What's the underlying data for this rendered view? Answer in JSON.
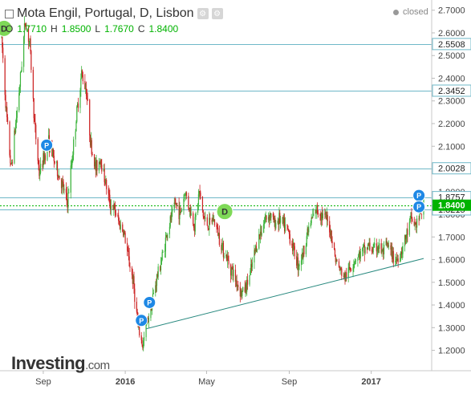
{
  "header": {
    "title": "Mota Engil, Portugal, D, Lisbon",
    "status": "closed",
    "ohlc": [
      {
        "key": "O",
        "value": "1.7710"
      },
      {
        "key": "H",
        "value": "1.8500"
      },
      {
        "key": "L",
        "value": "1.7670"
      },
      {
        "key": "C",
        "value": "1.8400"
      }
    ]
  },
  "logo": {
    "brand": "Investing",
    "domain": ".com"
  },
  "colors": {
    "up": "#3bb33b",
    "down": "#cc2222",
    "hline": "#6fb8c8",
    "trend": "#2a8a80",
    "last_price": "#00b300",
    "marker_p": "#1e88e5",
    "marker_d": "#7ed957"
  },
  "chart_data": {
    "type": "candlestick",
    "title": "Mota Engil, Portugal, D, Lisbon",
    "ylim": [
      1.11,
      2.745
    ],
    "y_ticks": [
      1.2,
      1.3,
      1.4,
      1.5,
      1.6,
      1.7,
      1.8,
      1.9,
      2.0,
      2.1,
      2.2,
      2.3,
      2.4,
      2.5,
      2.6,
      2.7
    ],
    "y_tick_labels": [
      "1.2000",
      "1.3000",
      "1.4000",
      "1.5000",
      "1.6000",
      "1.7000",
      "1.8000",
      "1.9000",
      "2.0000",
      "2.1000",
      "2.2000",
      "2.3000",
      "2.4000",
      "2.5000",
      "2.6000",
      "2.7000"
    ],
    "x_labels": [
      {
        "label": "Sep",
        "date": "2015-09-01"
      },
      {
        "label": "2016",
        "date": "2016-01-01",
        "bold": true
      },
      {
        "label": "May",
        "date": "2016-05-01"
      },
      {
        "label": "Sep",
        "date": "2016-09-01"
      },
      {
        "label": "2017",
        "date": "2017-01-01",
        "bold": true
      }
    ],
    "x_range": [
      "2015-07-01",
      "2017-03-20"
    ],
    "grid": false,
    "horizontal_levels": [
      {
        "value": 2.5508,
        "label": "2.5508"
      },
      {
        "value": 2.3452,
        "label": "2.3452"
      },
      {
        "value": 2.0028,
        "label": "2.0028"
      },
      {
        "value": 1.8757,
        "label": "1.8757"
      },
      {
        "value": 1.8215,
        "label": "1.8215"
      }
    ],
    "last_price": {
      "value": 1.84,
      "label": "1.8400"
    },
    "trendline": {
      "from": {
        "date": "2016-02-01",
        "value": 1.295
      },
      "to": {
        "date": "2017-03-20",
        "value": 1.605
      }
    },
    "price_path": [
      [
        "2015-07-01",
        2.58
      ],
      [
        "2015-07-08",
        2.25
      ],
      [
        "2015-07-15",
        2.0
      ],
      [
        "2015-07-22",
        2.2
      ],
      [
        "2015-07-29",
        2.4
      ],
      [
        "2015-08-05",
        2.65
      ],
      [
        "2015-08-12",
        2.55
      ],
      [
        "2015-08-19",
        2.2
      ],
      [
        "2015-08-26",
        1.98
      ],
      [
        "2015-09-02",
        2.05
      ],
      [
        "2015-09-09",
        2.12
      ],
      [
        "2015-09-16",
        2.05
      ],
      [
        "2015-09-23",
        1.98
      ],
      [
        "2015-09-30",
        1.92
      ],
      [
        "2015-10-07",
        1.85
      ],
      [
        "2015-10-14",
        2.05
      ],
      [
        "2015-10-21",
        2.25
      ],
      [
        "2015-10-28",
        2.42
      ],
      [
        "2015-11-04",
        2.35
      ],
      [
        "2015-11-11",
        2.1
      ],
      [
        "2015-11-18",
        2.0
      ],
      [
        "2015-11-25",
        2.05
      ],
      [
        "2015-12-02",
        1.95
      ],
      [
        "2015-12-09",
        1.85
      ],
      [
        "2015-12-16",
        1.82
      ],
      [
        "2015-12-23",
        1.76
      ],
      [
        "2015-12-30",
        1.72
      ],
      [
        "2016-01-06",
        1.6
      ],
      [
        "2016-01-13",
        1.5
      ],
      [
        "2016-01-20",
        1.3
      ],
      [
        "2016-01-27",
        1.22
      ],
      [
        "2016-02-03",
        1.33
      ],
      [
        "2016-02-10",
        1.42
      ],
      [
        "2016-02-17",
        1.52
      ],
      [
        "2016-02-24",
        1.6
      ],
      [
        "2016-03-02",
        1.7
      ],
      [
        "2016-03-09",
        1.78
      ],
      [
        "2016-03-16",
        1.85
      ],
      [
        "2016-03-23",
        1.8
      ],
      [
        "2016-03-30",
        1.9
      ],
      [
        "2016-04-06",
        1.82
      ],
      [
        "2016-04-13",
        1.75
      ],
      [
        "2016-04-20",
        1.9
      ],
      [
        "2016-04-27",
        1.78
      ],
      [
        "2016-05-04",
        1.75
      ],
      [
        "2016-05-11",
        1.78
      ],
      [
        "2016-05-18",
        1.72
      ],
      [
        "2016-05-25",
        1.65
      ],
      [
        "2016-06-01",
        1.6
      ],
      [
        "2016-06-08",
        1.55
      ],
      [
        "2016-06-15",
        1.5
      ],
      [
        "2016-06-22",
        1.45
      ],
      [
        "2016-06-29",
        1.48
      ],
      [
        "2016-07-06",
        1.55
      ],
      [
        "2016-07-13",
        1.65
      ],
      [
        "2016-07-20",
        1.72
      ],
      [
        "2016-07-27",
        1.78
      ],
      [
        "2016-08-03",
        1.8
      ],
      [
        "2016-08-10",
        1.76
      ],
      [
        "2016-08-17",
        1.78
      ],
      [
        "2016-08-24",
        1.75
      ],
      [
        "2016-08-31",
        1.72
      ],
      [
        "2016-09-07",
        1.65
      ],
      [
        "2016-09-14",
        1.58
      ],
      [
        "2016-09-21",
        1.62
      ],
      [
        "2016-09-28",
        1.72
      ],
      [
        "2016-10-05",
        1.78
      ],
      [
        "2016-10-12",
        1.82
      ],
      [
        "2016-10-19",
        1.8
      ],
      [
        "2016-10-26",
        1.78
      ],
      [
        "2016-11-02",
        1.72
      ],
      [
        "2016-11-09",
        1.6
      ],
      [
        "2016-11-16",
        1.55
      ],
      [
        "2016-11-23",
        1.52
      ],
      [
        "2016-11-30",
        1.56
      ],
      [
        "2016-12-07",
        1.6
      ],
      [
        "2016-12-14",
        1.62
      ],
      [
        "2016-12-21",
        1.64
      ],
      [
        "2016-12-28",
        1.66
      ],
      [
        "2017-01-04",
        1.64
      ],
      [
        "2017-01-11",
        1.66
      ],
      [
        "2017-01-18",
        1.63
      ],
      [
        "2017-01-25",
        1.66
      ],
      [
        "2017-02-01",
        1.62
      ],
      [
        "2017-02-08",
        1.6
      ],
      [
        "2017-02-15",
        1.64
      ],
      [
        "2017-02-22",
        1.7
      ],
      [
        "2017-03-01",
        1.78
      ],
      [
        "2017-03-08",
        1.75
      ],
      [
        "2017-03-15",
        1.8
      ],
      [
        "2017-03-20",
        1.84
      ]
    ],
    "event_markers": [
      {
        "type": "P",
        "date": "2015-09-06",
        "value": 2.105
      },
      {
        "type": "P",
        "date": "2016-01-25",
        "value": 1.332
      },
      {
        "type": "P",
        "date": "2016-02-06",
        "value": 1.411
      },
      {
        "type": "D",
        "date": "2016-05-28",
        "value": 1.812
      },
      {
        "type": "P",
        "date": "2017-03-13",
        "value": 1.883
      },
      {
        "type": "P",
        "date": "2017-03-13",
        "value": 1.833
      },
      {
        "type": "D",
        "date": "2015-07-01",
        "value": 2.62
      }
    ]
  }
}
